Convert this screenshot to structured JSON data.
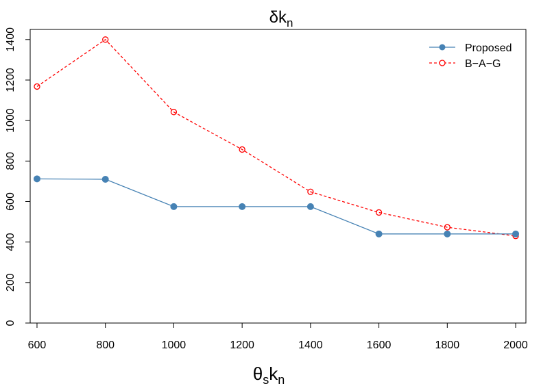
{
  "chart_data": {
    "type": "line",
    "title": "δk",
    "title_subscript": "n",
    "xlabel": "θ",
    "xlabel_sub1": "s",
    "xlabel_mid": "k",
    "xlabel_sub2": "n",
    "ylabel": "",
    "x": [
      600,
      800,
      1000,
      1200,
      1400,
      1600,
      1800,
      2000
    ],
    "xlim": [
      580,
      2030
    ],
    "ylim": [
      0,
      1450
    ],
    "x_ticks": [
      600,
      800,
      1000,
      1200,
      1400,
      1600,
      1800,
      2000
    ],
    "y_ticks": [
      0,
      200,
      400,
      600,
      800,
      1000,
      1200,
      1400
    ],
    "grid": false,
    "legend_position": "top-right",
    "series": [
      {
        "name": "Proposed",
        "color": "#4682B4",
        "line_style": "solid",
        "marker": "filled-circle",
        "values": [
          712,
          710,
          575,
          575,
          575,
          440,
          440,
          440
        ]
      },
      {
        "name": "B−A−G",
        "color": "#FF0000",
        "line_style": "dashed",
        "marker": "open-circle",
        "values": [
          1168,
          1400,
          1042,
          857,
          648,
          546,
          473,
          430
        ]
      }
    ]
  }
}
